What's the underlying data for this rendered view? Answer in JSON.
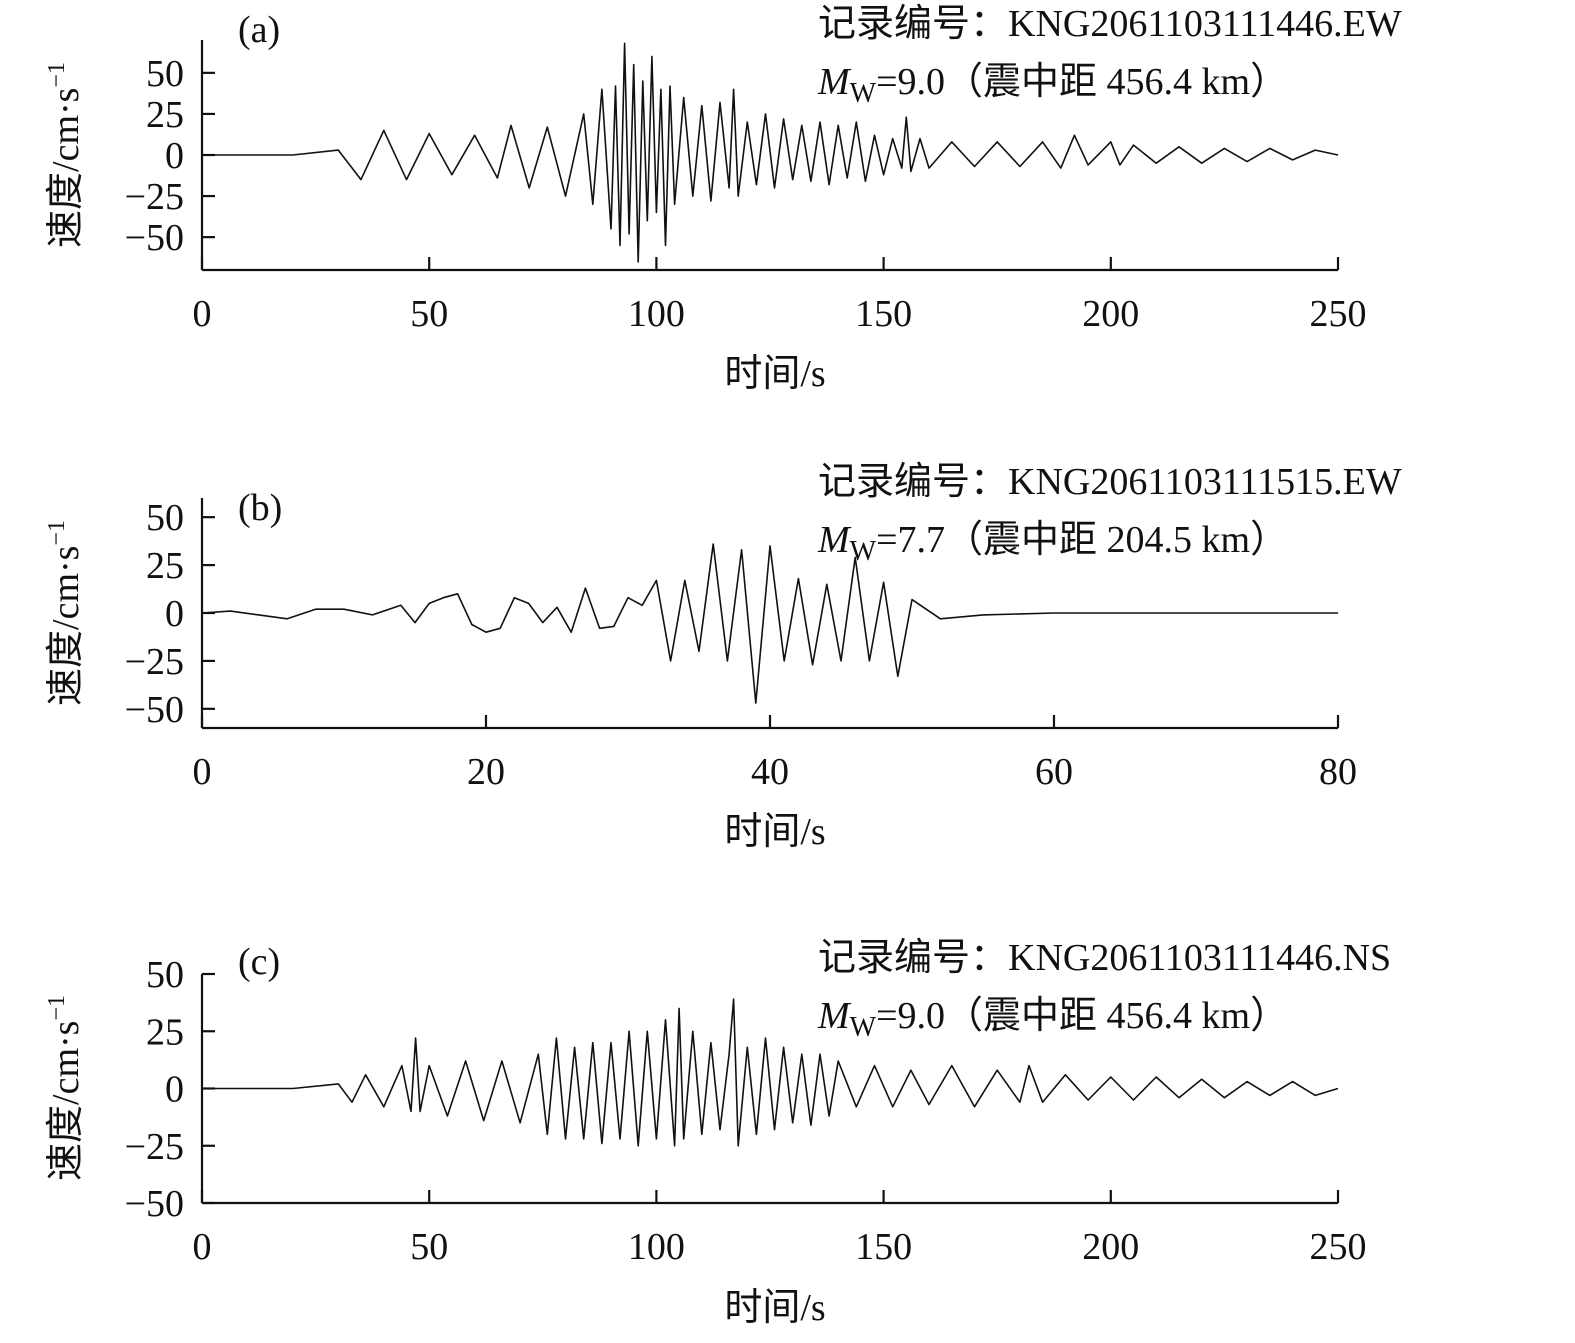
{
  "chart_data": [
    {
      "type": "line",
      "panel_label": "(a)",
      "record_prefix": "记录编号：",
      "record_id": "KNG2061103111446.EW",
      "magnitude_symbol": "M",
      "magnitude_subscript": "W",
      "magnitude_value": "=9.0",
      "distance_text": "（震中距 456.4 km）",
      "xlabel": "时间/s",
      "ylabel": "速度/cm·s",
      "ylabel_superscript": "−1",
      "xlim": [
        0,
        250
      ],
      "ylim": [
        -70,
        70
      ],
      "xticks": [
        0,
        50,
        100,
        150,
        200,
        250
      ],
      "xtick_labels": [
        "0",
        "50",
        "100",
        "150",
        "200",
        "250"
      ],
      "yticks": [
        50,
        25,
        0,
        -25,
        -50
      ],
      "ytick_labels": [
        "50",
        "25",
        "0",
        "−25",
        "−50"
      ],
      "series": [
        {
          "x": [
            0,
            20,
            30,
            35,
            40,
            45,
            50,
            55,
            60,
            65,
            68,
            72,
            76,
            80,
            84,
            86,
            88,
            90,
            91,
            92,
            93,
            94,
            95,
            96,
            97,
            98,
            99,
            100,
            101,
            102,
            103,
            104,
            106,
            108,
            110,
            112,
            114,
            116,
            117,
            118,
            120,
            122,
            124,
            126,
            128,
            130,
            132,
            134,
            136,
            138,
            140,
            142,
            144,
            146,
            148,
            150,
            152,
            154,
            155,
            156,
            158,
            160,
            165,
            170,
            175,
            180,
            185,
            189,
            192,
            195,
            200,
            202,
            205,
            210,
            215,
            220,
            225,
            230,
            235,
            240,
            245,
            250
          ],
          "y": [
            0,
            0,
            3,
            -15,
            15,
            -15,
            13,
            -12,
            12,
            -14,
            18,
            -20,
            17,
            -25,
            25,
            -30,
            40,
            -45,
            42,
            -55,
            68,
            -48,
            55,
            -65,
            45,
            -40,
            60,
            -35,
            40,
            -55,
            42,
            -30,
            35,
            -25,
            30,
            -28,
            32,
            -20,
            40,
            -25,
            20,
            -18,
            25,
            -20,
            22,
            -15,
            18,
            -16,
            20,
            -18,
            18,
            -14,
            20,
            -16,
            12,
            -12,
            10,
            -8,
            23,
            -10,
            10,
            -8,
            8,
            -7,
            8,
            -7,
            8,
            -8,
            12,
            -6,
            8,
            -6,
            6,
            -5,
            5,
            -5,
            4,
            -4,
            4,
            -3,
            3,
            0
          ]
        }
      ]
    },
    {
      "type": "line",
      "panel_label": "(b)",
      "record_prefix": "记录编号：",
      "record_id": "KNG2061103111515.EW",
      "magnitude_symbol": "M",
      "magnitude_subscript": "W",
      "magnitude_value": "=7.7",
      "distance_text": "（震中距 204.5 km）",
      "xlabel": "时间/s",
      "ylabel": "速度/cm·s",
      "ylabel_superscript": "−1",
      "xlim": [
        0,
        80
      ],
      "ylim": [
        -60,
        60
      ],
      "xticks": [
        0,
        20,
        40,
        60,
        80
      ],
      "xtick_labels": [
        "0",
        "20",
        "40",
        "60",
        "80"
      ],
      "yticks": [
        50,
        25,
        0,
        -25,
        -50
      ],
      "ytick_labels": [
        "50",
        "25",
        "0",
        "−25",
        "−50"
      ],
      "series": [
        {
          "x": [
            0,
            2,
            4,
            6,
            8,
            10,
            12,
            14,
            15,
            16,
            17,
            18,
            19,
            20,
            21,
            22,
            23,
            24,
            25,
            26,
            27,
            28,
            29,
            30,
            31,
            32,
            33,
            34,
            35,
            36,
            37,
            38,
            39,
            40,
            41,
            42,
            43,
            44,
            45,
            46,
            47,
            48,
            49,
            50,
            52,
            55,
            60,
            80
          ],
          "y": [
            0,
            1,
            -1,
            -3,
            2,
            2,
            -1,
            4,
            -5,
            5,
            8,
            10,
            -6,
            -10,
            -8,
            8,
            5,
            -5,
            3,
            -10,
            13,
            -8,
            -7,
            8,
            4,
            17,
            -25,
            17,
            -20,
            36,
            -25,
            33,
            -47,
            35,
            -25,
            18,
            -27,
            15,
            -25,
            29,
            -25,
            16,
            -33,
            7,
            -3,
            -1,
            0,
            0
          ]
        }
      ]
    },
    {
      "type": "line",
      "panel_label": "(c)",
      "record_prefix": "记录编号：",
      "record_id": "KNG2061103111446.NS",
      "magnitude_symbol": "M",
      "magnitude_subscript": "W",
      "magnitude_value": "=9.0",
      "distance_text": "（震中距 456.4 km）",
      "xlabel": "时间/s",
      "ylabel": "速度/cm·s",
      "ylabel_superscript": "−1",
      "xlim": [
        0,
        250
      ],
      "ylim": [
        -50,
        50
      ],
      "xticks": [
        0,
        50,
        100,
        150,
        200,
        250
      ],
      "xtick_labels": [
        "0",
        "50",
        "100",
        "150",
        "200",
        "250"
      ],
      "yticks": [
        50,
        25,
        0,
        -25,
        -50
      ],
      "ytick_labels": [
        "50",
        "25",
        "0",
        "−25",
        "−50"
      ],
      "series": [
        {
          "x": [
            0,
            20,
            30,
            33,
            36,
            40,
            44,
            46,
            47,
            48,
            50,
            54,
            58,
            62,
            66,
            70,
            74,
            76,
            78,
            80,
            82,
            84,
            86,
            88,
            90,
            92,
            94,
            96,
            98,
            100,
            102,
            104,
            105,
            106,
            108,
            110,
            112,
            114,
            116,
            117,
            118,
            120,
            122,
            124,
            126,
            128,
            130,
            132,
            134,
            136,
            138,
            140,
            144,
            148,
            152,
            156,
            160,
            165,
            170,
            175,
            180,
            182,
            185,
            190,
            195,
            200,
            205,
            210,
            215,
            220,
            225,
            230,
            235,
            240,
            245,
            250
          ],
          "y": [
            0,
            0,
            2,
            -6,
            6,
            -8,
            10,
            -10,
            22,
            -10,
            10,
            -12,
            12,
            -14,
            12,
            -15,
            15,
            -20,
            22,
            -22,
            18,
            -22,
            20,
            -24,
            20,
            -22,
            25,
            -25,
            25,
            -22,
            30,
            -25,
            35,
            -22,
            25,
            -20,
            20,
            -18,
            15,
            39,
            -25,
            18,
            -20,
            22,
            -18,
            18,
            -15,
            15,
            -16,
            15,
            -12,
            12,
            -8,
            10,
            -8,
            8,
            -7,
            10,
            -8,
            8,
            -6,
            10,
            -6,
            6,
            -5,
            5,
            -5,
            5,
            -4,
            4,
            -4,
            3,
            -3,
            3,
            -3,
            0
          ]
        }
      ]
    }
  ]
}
